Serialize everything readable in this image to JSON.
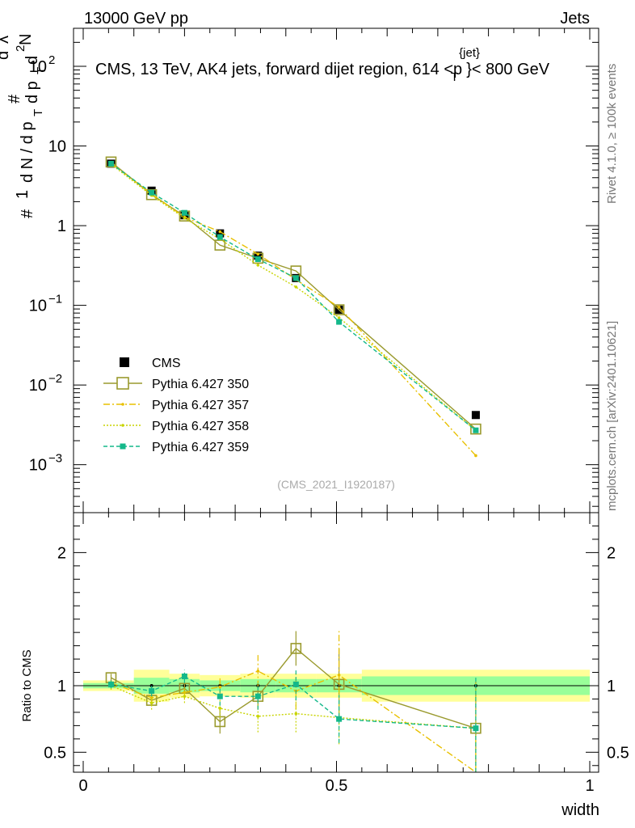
{
  "header": {
    "energy_label": "13000 GeV pp",
    "obs_label": "Jets",
    "title_prefix": "CMS, 13 TeV, AK4 jets, forward dijet region, 614 <",
    "title_p": "p",
    "title_sup": "{jet}",
    "title_sub": "T",
    "title_suffix": "}< 800 GeV",
    "side_rivet": "Rivet 4.1.0, ≥ 100k events",
    "side_mcplots": "mcplots.cern.ch [arXiv:2401.10621]",
    "watermark": "(CMS_2021_I1920187)",
    "ylabel_top_lines": [
      "#",
      "1",
      "d N / d p",
      "T",
      "#",
      "d p",
      "T",
      "d",
      "2",
      "N",
      "d",
      "λ"
    ],
    "ylabel_bottom": "Ratio to CMS",
    "xlabel": "width"
  },
  "colors": {
    "cms": "#000000",
    "p350": "#9a9a2e",
    "p357": "#e8c000",
    "p358": "#c8d400",
    "p359": "#14b88a",
    "band_yellow": "#ffff99",
    "band_green": "#99ff99"
  },
  "chart_data": {
    "type": "scatter",
    "x_axis": {
      "range": [
        0,
        1
      ],
      "ticks": [
        "0",
        "0.5",
        "1"
      ]
    },
    "top": {
      "scale": "log",
      "ylim": [
        0.00025,
        300
      ],
      "y_ticks": [
        "10^-3",
        "10^-2",
        "10^-1",
        "1",
        "10",
        "10^2"
      ],
      "y_tick_labels": {
        "base": "10",
        "exp": [
          "−3",
          "−2",
          "−1",
          "",
          "",
          "2"
        ],
        "plain": [
          "",
          "",
          "",
          "1",
          "10",
          ""
        ]
      }
    },
    "bottom": {
      "ylim": [
        0.35,
        2.3
      ],
      "y_ticks": [
        "0.5",
        "1",
        "2"
      ]
    },
    "x": [
      0.055,
      0.135,
      0.2,
      0.27,
      0.345,
      0.42,
      0.505,
      0.775
    ],
    "bin_edges": [
      0,
      0.1,
      0.17,
      0.23,
      0.31,
      0.38,
      0.46,
      0.55,
      1.0
    ],
    "cms": {
      "name": "CMS",
      "values": [
        6.0,
        2.75,
        1.35,
        0.8,
        0.42,
        0.22,
        0.088,
        0.0042
      ],
      "band_yellow": [
        0.04,
        0.12,
        0.09,
        0.08,
        0.09,
        0.09,
        0.09,
        0.12
      ],
      "band_green": [
        0.02,
        0.06,
        0.05,
        0.04,
        0.05,
        0.05,
        0.05,
        0.07
      ]
    },
    "series": [
      {
        "name": "Pythia 6.427 350",
        "key": "p350",
        "style": "solid",
        "marker": "open-square",
        "values": [
          6.3,
          2.45,
          1.32,
          0.57,
          0.39,
          0.27,
          0.088,
          0.0028
        ],
        "ratio": [
          1.06,
          0.89,
          0.98,
          0.73,
          0.92,
          1.28,
          1.01,
          0.68
        ],
        "ratio_err": [
          0.03,
          0.04,
          0.04,
          0.09,
          0.1,
          0.13,
          0.27,
          0.35
        ]
      },
      {
        "name": "Pythia 6.427 357",
        "key": "p357",
        "style": "dashdot",
        "marker": "dot",
        "values": [
          6.1,
          2.5,
          1.28,
          0.84,
          0.44,
          0.21,
          0.095,
          0.0013
        ],
        "ratio": [
          1.02,
          0.91,
          0.95,
          0.99,
          1.11,
          0.96,
          1.08,
          0.3
        ],
        "ratio_err": [
          0.03,
          0.05,
          0.05,
          0.08,
          0.12,
          0.14,
          0.33,
          0.4
        ]
      },
      {
        "name": "Pythia 6.427 358",
        "key": "p358",
        "style": "dotted",
        "marker": "dot",
        "values": [
          5.9,
          2.4,
          1.24,
          0.68,
          0.32,
          0.17,
          0.07,
          0.0027
        ],
        "ratio": [
          1.0,
          0.87,
          0.92,
          0.83,
          0.77,
          0.79,
          0.76,
          0.68
        ],
        "ratio_err": [
          0.03,
          0.05,
          0.05,
          0.07,
          0.12,
          0.14,
          0.2,
          0.35
        ]
      },
      {
        "name": "Pythia 6.427 359",
        "key": "p359",
        "style": "dashed",
        "marker": "filled-square",
        "values": [
          6.0,
          2.6,
          1.45,
          0.72,
          0.38,
          0.22,
          0.062,
          0.0027
        ],
        "ratio": [
          1.01,
          0.96,
          1.07,
          0.92,
          0.92,
          1.01,
          0.75,
          0.68
        ],
        "ratio_err": [
          0.03,
          0.04,
          0.05,
          0.07,
          0.1,
          0.12,
          0.18,
          0.38
        ]
      }
    ]
  }
}
